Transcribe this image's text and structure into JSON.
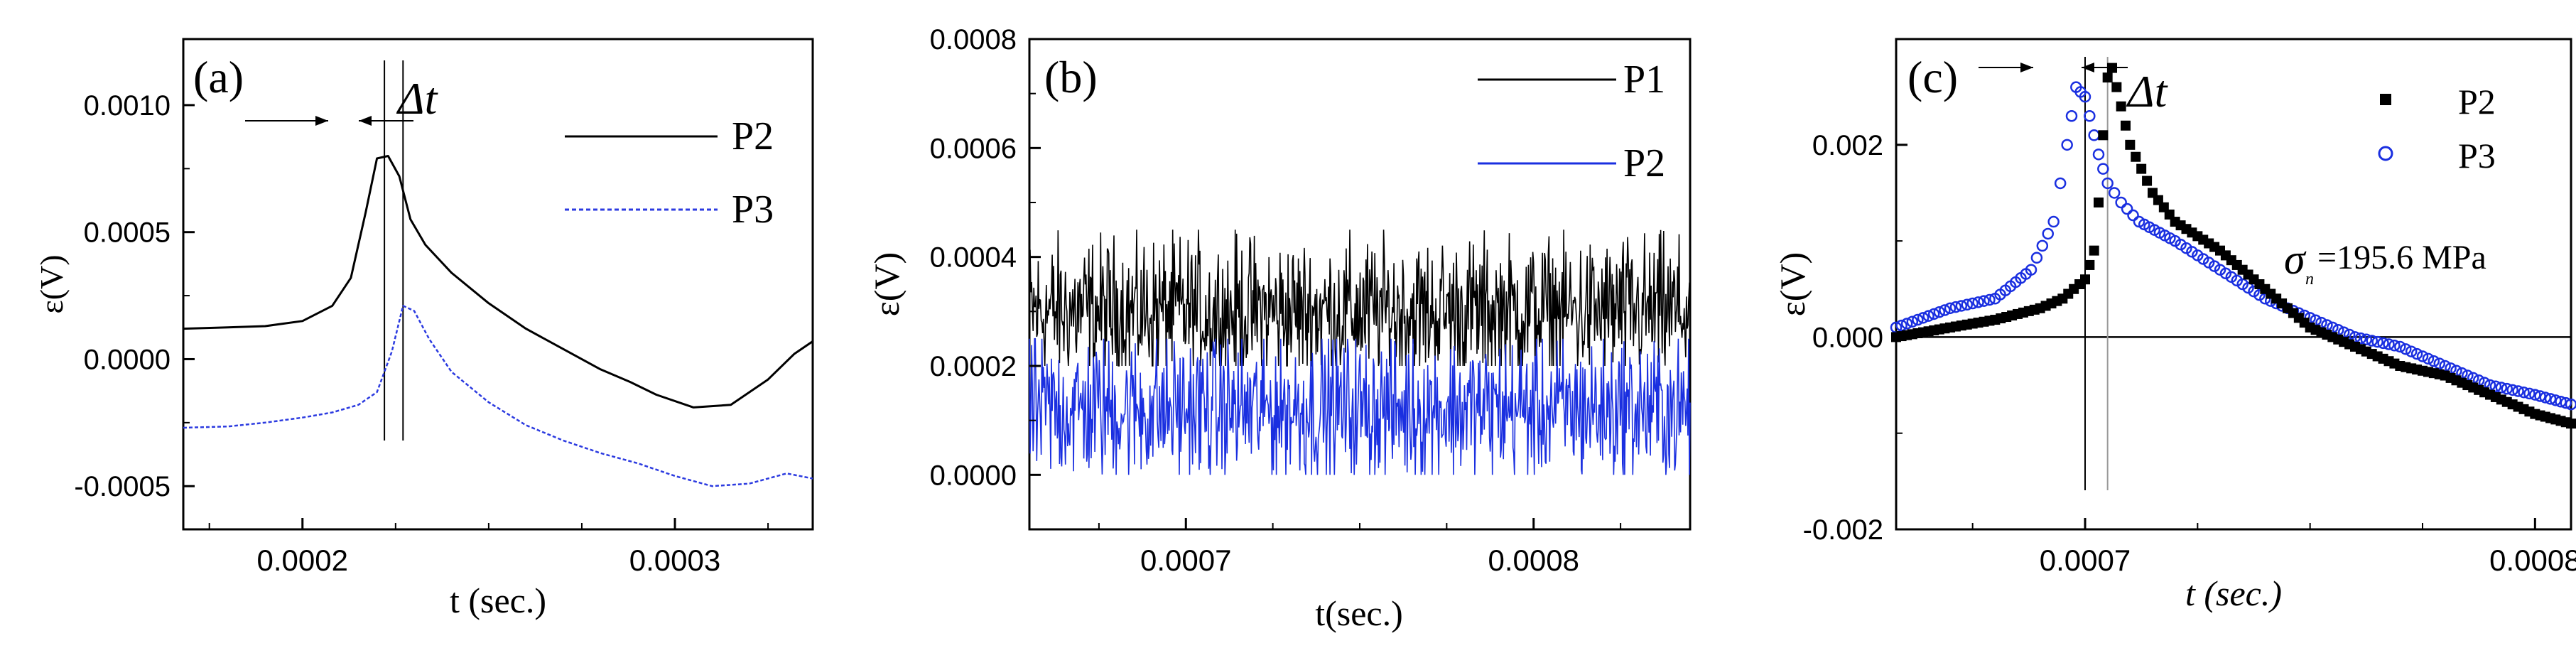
{
  "chart_data": [
    {
      "type": "line",
      "panel_label": "(a)",
      "xlabel": "t (sec.)",
      "ylabel": "ε(V)",
      "xlim": [
        0.000168,
        0.000337
      ],
      "ylim": [
        -0.00067,
        0.00126
      ],
      "x_ticks": [
        0.0002,
        0.0003
      ],
      "x_tick_labels": [
        "0.0002",
        "0.0003"
      ],
      "y_ticks": [
        -0.0005,
        0.0,
        0.0005,
        0.001
      ],
      "y_tick_labels": [
        "-0.0005",
        "0.0000",
        "0.0005",
        "0.0010"
      ],
      "legend_position": "top-right",
      "annotation": "Δt",
      "markers_x": [
        0.000222,
        0.000227
      ],
      "series": [
        {
          "name": "P2",
          "color": "#000000",
          "style": "solid",
          "x": [
            0.000168,
            0.00018,
            0.00019,
            0.0002,
            0.000208,
            0.000213,
            0.000217,
            0.00022,
            0.000223,
            0.000226,
            0.000229,
            0.000233,
            0.00024,
            0.00025,
            0.00026,
            0.00027,
            0.00028,
            0.000288,
            0.000295,
            0.000305,
            0.000315,
            0.000325,
            0.000332,
            0.000337
          ],
          "values": [
            0.00012,
            0.000125,
            0.00013,
            0.00015,
            0.00021,
            0.00032,
            0.00058,
            0.00079,
            0.0008,
            0.00072,
            0.00055,
            0.00045,
            0.00034,
            0.00022,
            0.00012,
            4e-05,
            -4e-05,
            -9e-05,
            -0.00014,
            -0.00019,
            -0.00018,
            -8e-05,
            2e-05,
            7e-05
          ]
        },
        {
          "name": "P3",
          "color": "#2c3be0",
          "style": "dashed",
          "x": [
            0.000168,
            0.00018,
            0.00019,
            0.0002,
            0.000208,
            0.000215,
            0.00022,
            0.000224,
            0.000227,
            0.00023,
            0.000234,
            0.00024,
            0.00025,
            0.00026,
            0.00027,
            0.00028,
            0.00029,
            0.0003,
            0.00031,
            0.00032,
            0.00033,
            0.000337
          ],
          "values": [
            -0.00027,
            -0.000265,
            -0.00025,
            -0.00023,
            -0.00021,
            -0.00018,
            -0.00013,
            3e-05,
            0.00021,
            0.00019,
            8e-05,
            -5e-05,
            -0.00017,
            -0.00026,
            -0.00032,
            -0.00037,
            -0.00041,
            -0.00046,
            -0.0005,
            -0.00049,
            -0.00045,
            -0.00047
          ]
        }
      ]
    },
    {
      "type": "line",
      "panel_label": "(b)",
      "xlabel": "t(sec.)",
      "ylabel": "ε(V)",
      "xlim": [
        0.000655,
        0.000845
      ],
      "ylim": [
        -0.0001,
        0.0008
      ],
      "x_ticks": [
        0.0007,
        0.0008
      ],
      "x_tick_labels": [
        "0.0007",
        "0.0008"
      ],
      "y_ticks": [
        0.0,
        0.0002,
        0.0004,
        0.0006,
        0.0008
      ],
      "y_tick_labels": [
        "0.0000",
        "0.0002",
        "0.0004",
        "0.0006",
        "0.0008"
      ],
      "legend_position": "top-right",
      "series": [
        {
          "name": "P1",
          "color": "#000000",
          "style": "solid",
          "mean": 0.0003,
          "noise_range": [
            0.0002,
            0.00045
          ]
        },
        {
          "name": "P2",
          "color": "#1a2fe0",
          "style": "solid",
          "mean": 0.00012,
          "noise_range": [
            0.0,
            0.00025
          ]
        }
      ]
    },
    {
      "type": "scatter",
      "panel_label": "(c)",
      "xlabel": "t (sec.)",
      "ylabel": "ε(V)",
      "xlim": [
        0.000658,
        0.000808
      ],
      "ylim": [
        -0.002,
        0.0031
      ],
      "x_ticks": [
        0.0007,
        0.0008
      ],
      "x_tick_labels": [
        "0.0007",
        "0.0008"
      ],
      "y_ticks": [
        -0.002,
        0.0,
        0.002
      ],
      "y_tick_labels": [
        "-0.002",
        "0.000",
        "0.002"
      ],
      "legend_position": "top-right",
      "annotation": "Δt",
      "stress_label": "σ",
      "stress_subscript": "n",
      "stress_value": "=195.6 MPa",
      "markers_x": [
        0.0007,
        0.000705
      ],
      "zero_line": true,
      "series": [
        {
          "name": "P2",
          "color": "#000000",
          "marker": "square",
          "x": [
            0.000658,
            0.00067,
            0.00068,
            0.00069,
            0.000695,
            0.0007,
            0.000702,
            0.000703,
            0.000704,
            0.000705,
            0.000706,
            0.000708,
            0.00071,
            0.000715,
            0.00072,
            0.00073,
            0.00074,
            0.00075,
            0.00076,
            0.00077,
            0.00078,
            0.00079,
            0.0008,
            0.000808
          ],
          "values": [
            0.0,
            0.0001,
            0.00018,
            0.0003,
            0.0004,
            0.0006,
            0.0009,
            0.0014,
            0.0021,
            0.0027,
            0.0028,
            0.0024,
            0.002,
            0.0015,
            0.0012,
            0.0009,
            0.0005,
            0.0001,
            -0.0001,
            -0.0003,
            -0.0004,
            -0.0006,
            -0.0008,
            -0.0009
          ]
        },
        {
          "name": "P3",
          "color": "#1a2fe0",
          "marker": "circle-open",
          "x": [
            0.000658,
            0.00067,
            0.00068,
            0.000688,
            0.000693,
            0.000696,
            0.000698,
            0.0007,
            0.000701,
            0.000703,
            0.000705,
            0.000708,
            0.000712,
            0.00072,
            0.00073,
            0.00074,
            0.00075,
            0.00076,
            0.00077,
            0.00078,
            0.00079,
            0.0008,
            0.000808
          ],
          "values": [
            0.0001,
            0.0003,
            0.0004,
            0.0007,
            0.0012,
            0.002,
            0.0026,
            0.0025,
            0.0023,
            0.0019,
            0.0016,
            0.0014,
            0.0012,
            0.001,
            0.0007,
            0.0004,
            0.0002,
            0.0,
            -0.0001,
            -0.0003,
            -0.0005,
            -0.0006,
            -0.0007
          ]
        }
      ]
    }
  ]
}
